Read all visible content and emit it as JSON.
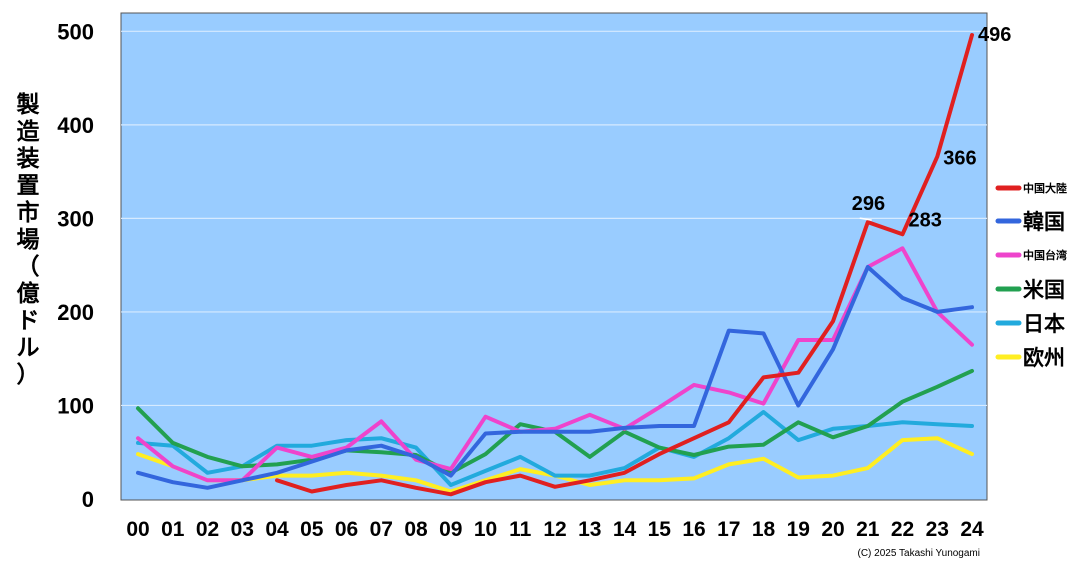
{
  "chart_data": {
    "type": "line",
    "ylabel": "製造装置市場（億ドル）",
    "ylim": [
      0,
      520
    ],
    "yticks": [
      0,
      100,
      200,
      300,
      400,
      500
    ],
    "grid": true,
    "legend_position": "right",
    "background_color": "#99CCFF",
    "x": [
      "00",
      "01",
      "02",
      "03",
      "04",
      "05",
      "06",
      "07",
      "08",
      "09",
      "10",
      "11",
      "12",
      "13",
      "14",
      "15",
      "16",
      "17",
      "18",
      "19",
      "20",
      "21",
      "22",
      "23",
      "24"
    ],
    "series": [
      {
        "name": "中国大陸",
        "color": "#E02020",
        "legend_size": "small",
        "values": [
          null,
          null,
          null,
          null,
          20,
          8,
          15,
          20,
          12,
          5,
          18,
          25,
          13,
          20,
          28,
          48,
          65,
          82,
          130,
          135,
          190,
          296,
          283,
          366,
          496
        ]
      },
      {
        "name": "韓国",
        "color": "#3366DD",
        "legend_size": "large",
        "values": [
          28,
          18,
          12,
          20,
          28,
          40,
          52,
          57,
          45,
          25,
          70,
          72,
          72,
          72,
          76,
          78,
          78,
          180,
          177,
          100,
          160,
          248,
          215,
          200,
          205
        ]
      },
      {
        "name": "中国台湾",
        "color": "#EE44CC",
        "legend_size": "small",
        "values": [
          65,
          35,
          20,
          20,
          55,
          45,
          55,
          83,
          42,
          32,
          88,
          72,
          75,
          90,
          75,
          98,
          122,
          114,
          102,
          170,
          170,
          248,
          268,
          200,
          165
        ]
      },
      {
        "name": "米国",
        "color": "#22A050",
        "legend_size": "large",
        "values": [
          97,
          60,
          45,
          35,
          37,
          42,
          52,
          50,
          47,
          28,
          48,
          80,
          72,
          45,
          72,
          55,
          47,
          56,
          58,
          82,
          66,
          78,
          104,
          120,
          137
        ]
      },
      {
        "name": "日本",
        "color": "#22AADD",
        "legend_size": "large",
        "values": [
          60,
          57,
          28,
          35,
          57,
          57,
          63,
          65,
          55,
          15,
          30,
          45,
          25,
          25,
          33,
          55,
          45,
          65,
          93,
          63,
          75,
          78,
          82,
          80,
          78
        ]
      },
      {
        "name": "欧州",
        "color": "#FFEE22",
        "legend_size": "large",
        "values": [
          48,
          35,
          20,
          20,
          25,
          25,
          28,
          25,
          20,
          8,
          20,
          32,
          25,
          15,
          20,
          20,
          22,
          37,
          43,
          23,
          25,
          33,
          63,
          65,
          48
        ]
      }
    ],
    "annotations": [
      {
        "label": "496",
        "x": "24",
        "y": 496
      },
      {
        "label": "366",
        "x": "23",
        "y": 366
      },
      {
        "label": "296",
        "x": "21",
        "y": 296
      },
      {
        "label": "283",
        "x": "22",
        "y": 283
      }
    ],
    "copyright": "(C) 2025 Takashi Yunogami"
  }
}
